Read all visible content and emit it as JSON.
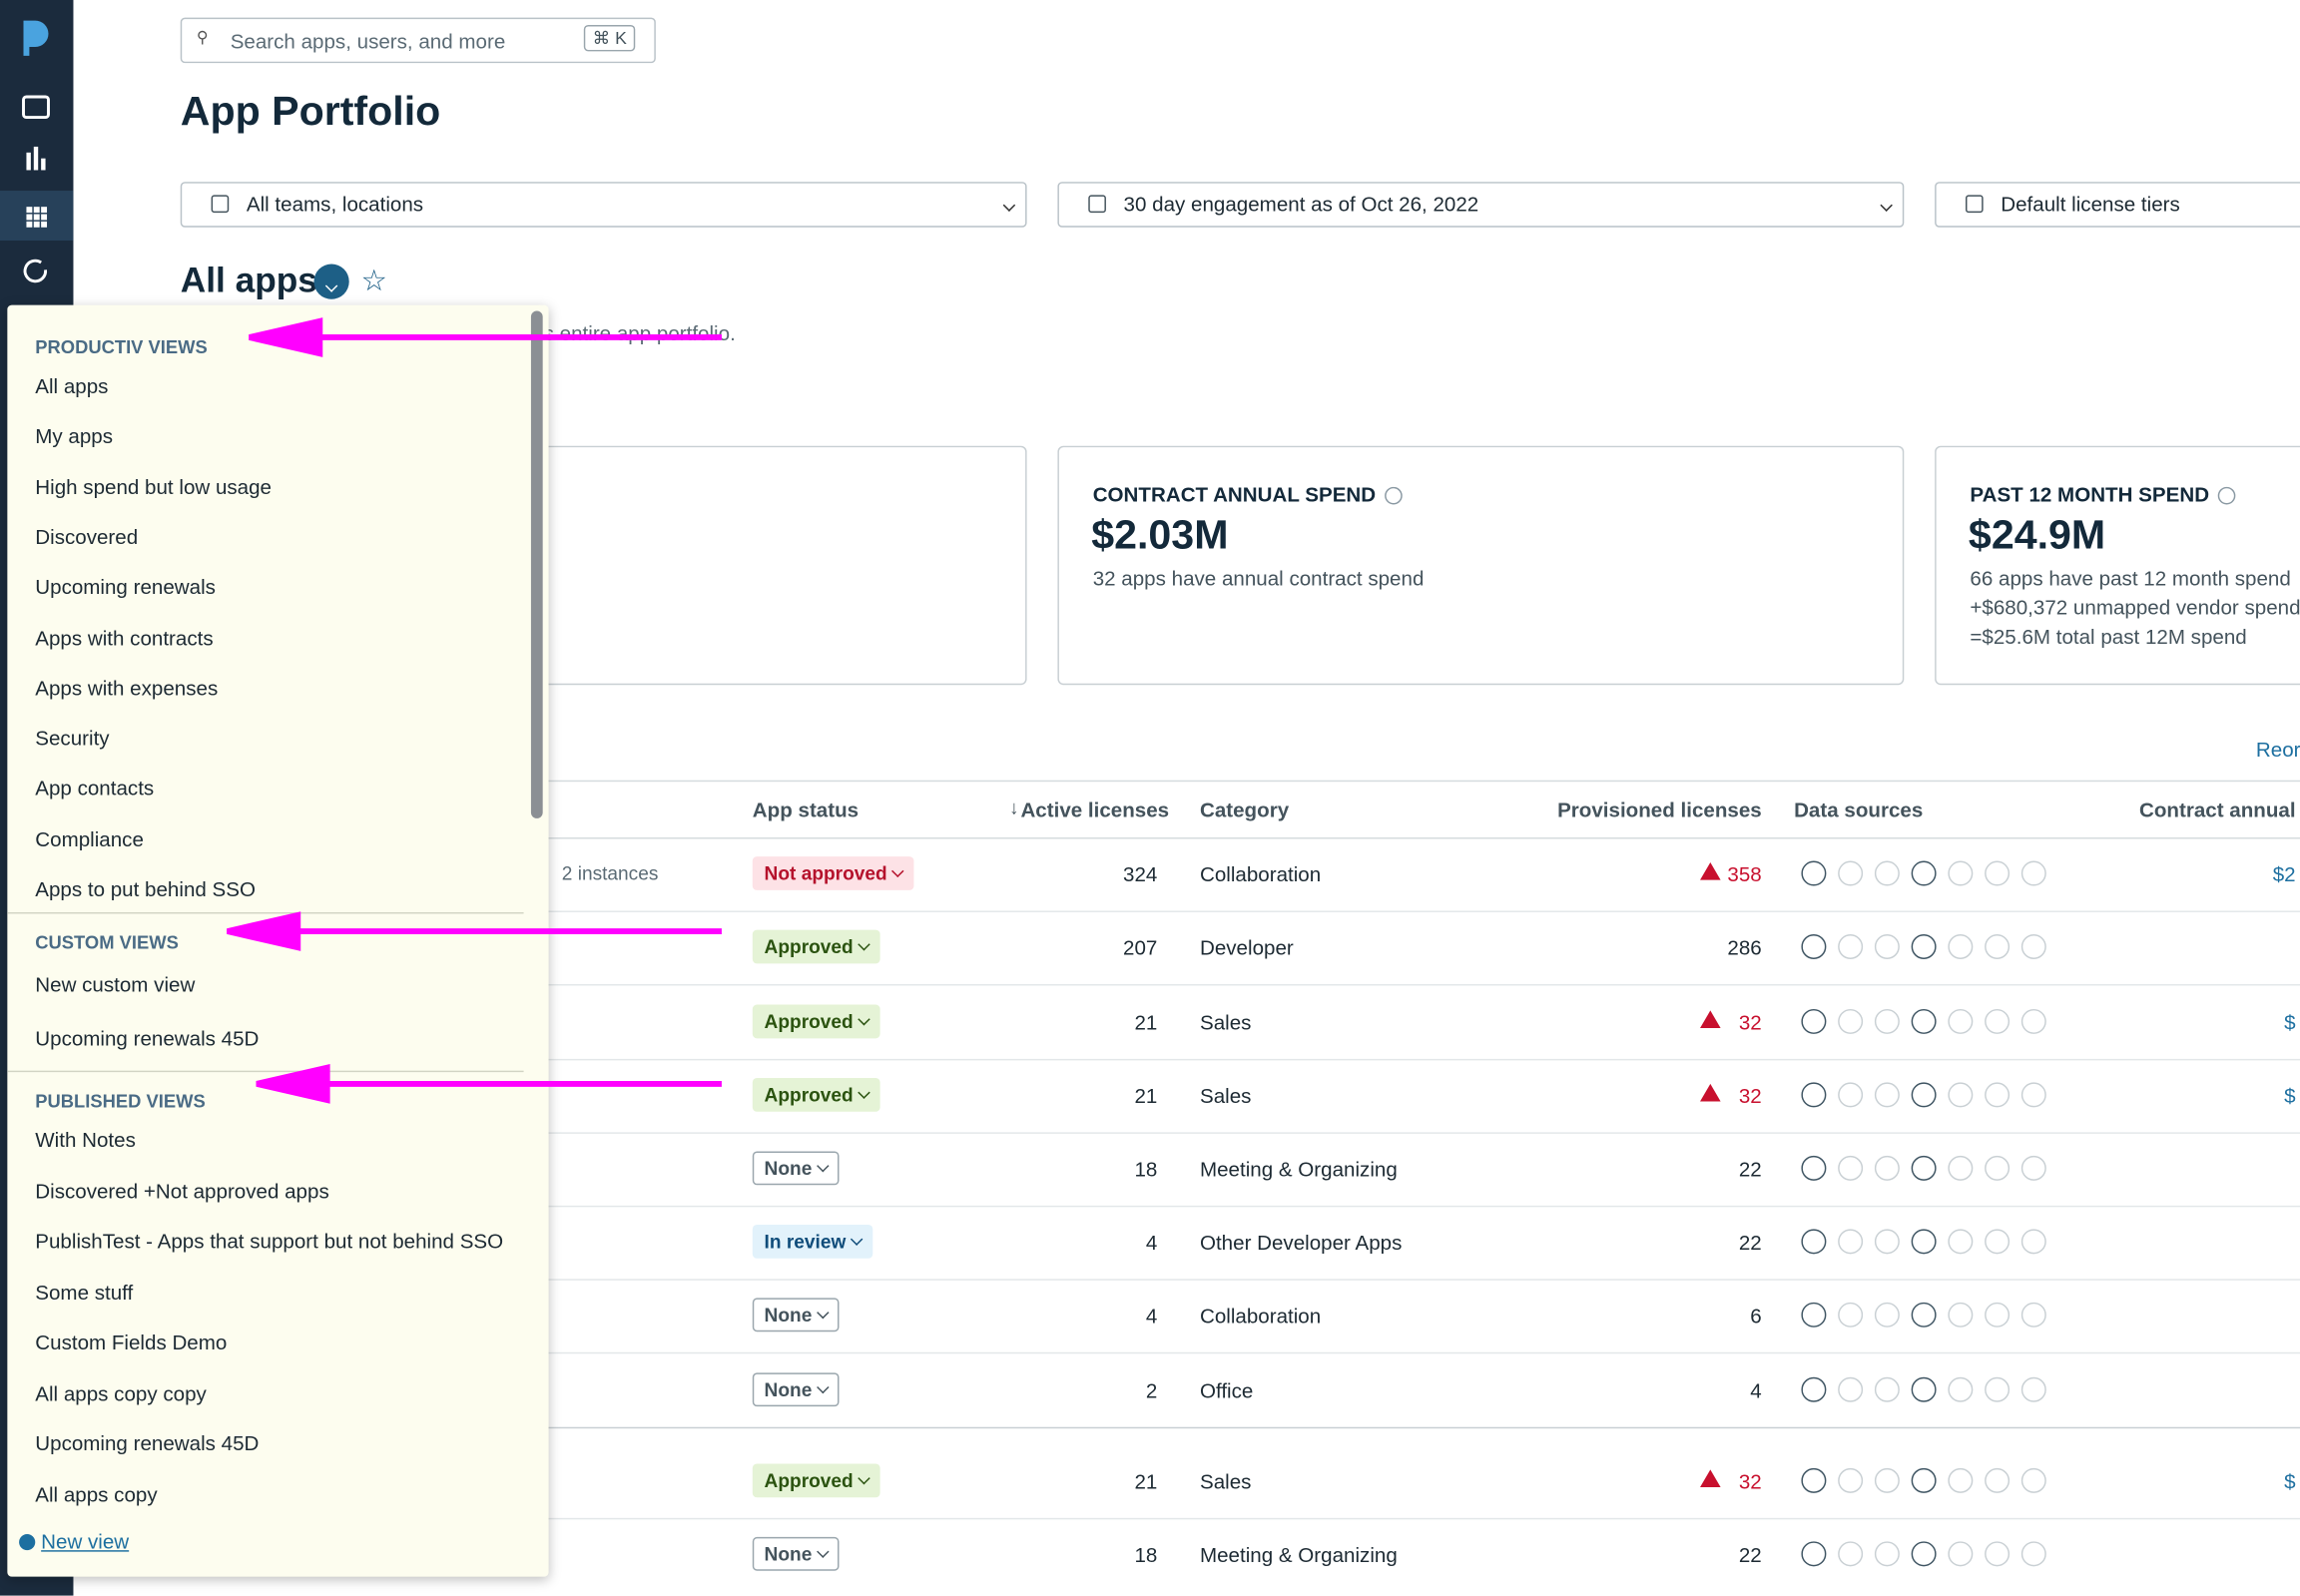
{
  "search": {
    "placeholder": "Search apps, users, and more",
    "shortcut": "⌘ K"
  },
  "page_title": "App Portfolio",
  "filters": [
    "All teams, locations",
    "30 day engagement as of Oct 26, 2022",
    "Default license tiers"
  ],
  "view": {
    "title": "All apps",
    "description": "'s entire app portfolio."
  },
  "cards": [
    {
      "title": "CONTRACT ANNUAL SPEND",
      "value": "$2.03M",
      "lines": [
        "32 apps have annual contract spend"
      ]
    },
    {
      "title": "PAST 12 MONTH SPEND",
      "value": "$24.9M",
      "lines": [
        "66 apps have past 12 month spend",
        "+$680,372 unmapped vendor spend",
        "=$25.6M total past 12M spend"
      ]
    }
  ],
  "table": {
    "action": "Reor",
    "headers": [
      "App status",
      "Active licenses",
      "Category",
      "Provisioned licenses",
      "Data sources",
      "Contract annual"
    ],
    "rows": [
      {
        "instances": "2 instances",
        "status": "Not approved",
        "active": "324",
        "category": "Collaboration",
        "provisioned": "358",
        "warning": true,
        "contract": "$2"
      },
      {
        "status": "Approved",
        "active": "207",
        "category": "Developer",
        "provisioned": "286",
        "warning": false
      },
      {
        "status": "Approved",
        "active": "21",
        "category": "Sales",
        "provisioned": "32",
        "warning": true,
        "contract": "$"
      },
      {
        "status": "Approved",
        "active": "21",
        "category": "Sales",
        "provisioned": "32",
        "warning": true,
        "contract": "$"
      },
      {
        "status": "None",
        "active": "18",
        "category": "Meeting & Organizing",
        "provisioned": "22",
        "warning": false
      },
      {
        "status": "In review",
        "active": "4",
        "category": "Other Developer Apps",
        "provisioned": "22",
        "warning": false
      },
      {
        "status": "None",
        "active": "4",
        "category": "Collaboration",
        "provisioned": "6",
        "warning": false
      },
      {
        "status": "None",
        "active": "2",
        "category": "Office",
        "provisioned": "4",
        "warning": false
      },
      {
        "status": "Approved",
        "active": "21",
        "category": "Sales",
        "provisioned": "32",
        "warning": true,
        "contract": "$"
      },
      {
        "status": "None",
        "active": "18",
        "category": "Meeting & Organizing",
        "provisioned": "22",
        "warning": false
      }
    ]
  },
  "views_menu": {
    "sections": [
      {
        "title": "PRODUCTIV VIEWS",
        "items": [
          "All apps",
          "My apps",
          "High spend but low usage",
          "Discovered",
          "Upcoming renewals",
          "Apps with contracts",
          "Apps with expenses",
          "Security",
          "App contacts",
          "Compliance",
          "Apps to put behind SSO"
        ]
      },
      {
        "title": "CUSTOM VIEWS",
        "items": [
          "New custom view",
          "Upcoming renewals 45D"
        ]
      },
      {
        "title": "PUBLISHED VIEWS",
        "items": [
          "With Notes",
          "Discovered +Not approved apps",
          "PublishTest - Apps that support but not behind SSO",
          "Some stuff",
          "Custom Fields Demo",
          "All apps copy copy",
          "Upcoming renewals 45D",
          "All apps copy"
        ]
      }
    ],
    "new_view": "New view"
  }
}
